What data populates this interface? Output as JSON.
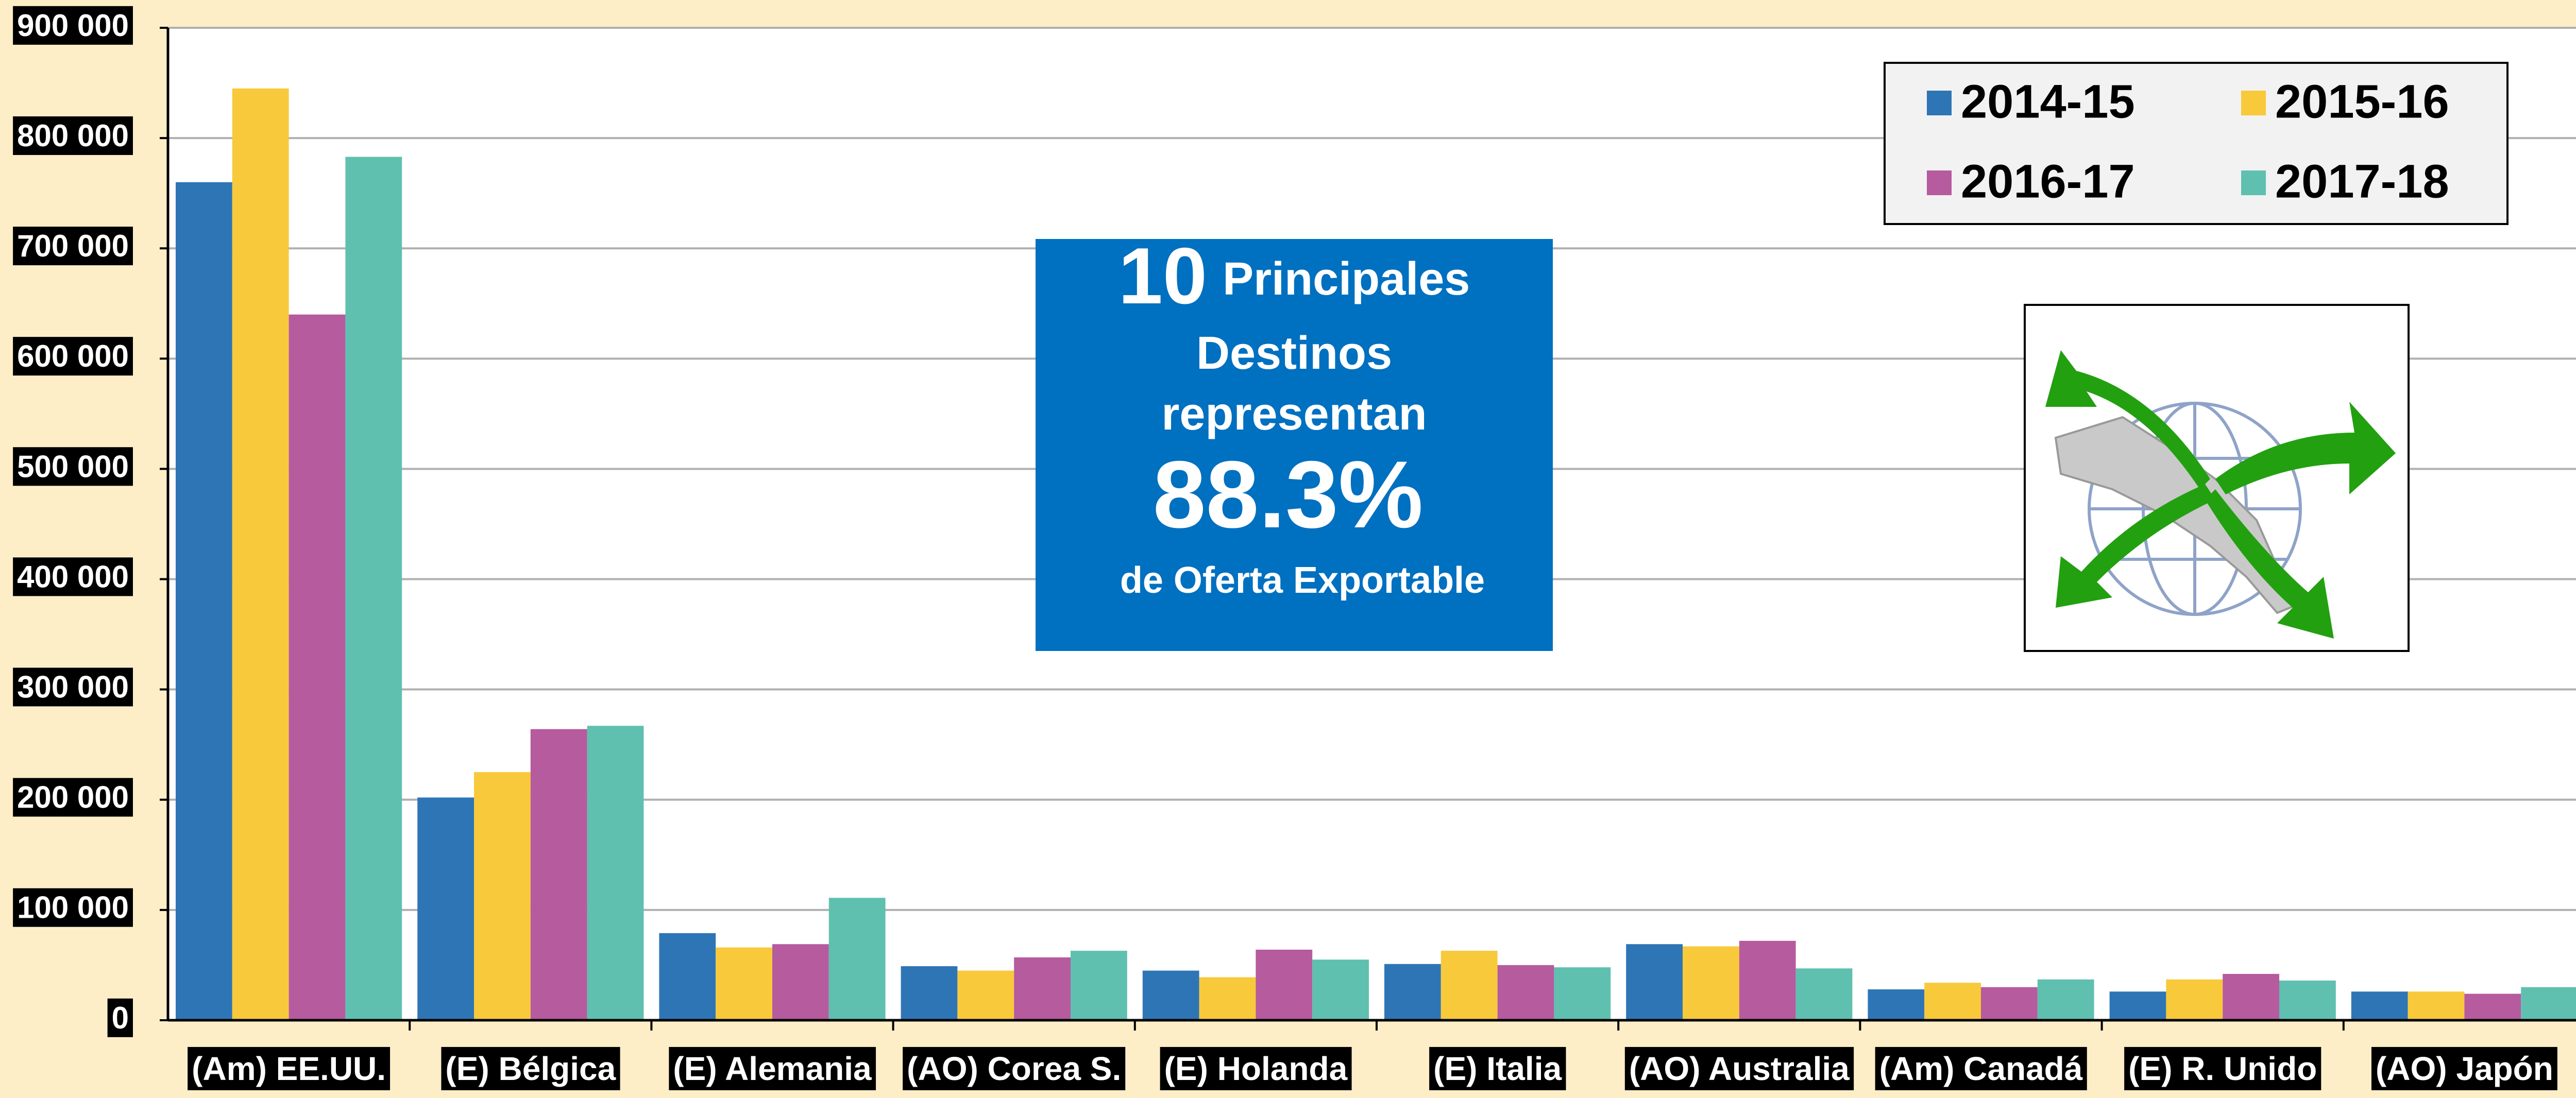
{
  "chart_data": {
    "type": "bar",
    "categories": [
      "(Am) EE.UU.",
      "(E) Bélgica",
      "(E) Alemania",
      "(AO) Corea S.",
      "(E) Holanda",
      "(E) Italia",
      "(AO) Australia",
      "(Am) Canadá",
      "(E) R. Unido",
      "(AO) Japón"
    ],
    "series": [
      {
        "name": "2014-15",
        "color": "#2e75b6",
        "values": [
          760000,
          202000,
          79000,
          49000,
          45000,
          51000,
          69000,
          28000,
          26000,
          26000
        ]
      },
      {
        "name": "2015-16",
        "color": "#f8c93a",
        "values": [
          845000,
          225000,
          66000,
          45000,
          39000,
          63000,
          67000,
          34000,
          37000,
          26000
        ]
      },
      {
        "name": "2016-17",
        "color": "#b65b9e",
        "values": [
          640000,
          264000,
          69000,
          57000,
          64000,
          50000,
          72000,
          30000,
          42000,
          24000
        ]
      },
      {
        "name": "2017-18",
        "color": "#5fc0b0",
        "values": [
          783000,
          267000,
          111000,
          63000,
          55000,
          48000,
          47000,
          37000,
          36000,
          30000
        ]
      }
    ],
    "ylim": [
      0,
      900000
    ],
    "yticks": [
      0,
      {
        "value": 100000,
        "label": "100 000"
      },
      {
        "value": 200000,
        "label": "200 000"
      },
      {
        "value": 300000,
        "label": "300 000"
      },
      {
        "value": 400000,
        "label": "400 000"
      },
      {
        "value": 500000,
        "label": "500 000"
      },
      {
        "value": 600000,
        "label": "600 000"
      },
      {
        "value": 700000,
        "label": "700 000"
      },
      {
        "value": 800000,
        "label": "800 000"
      },
      {
        "value": 900000,
        "label": "900 000"
      }
    ],
    "grid": true,
    "legend": "upper right",
    "annotation": {
      "number": "10",
      "lines": [
        "Principales",
        "Destinos",
        "representan"
      ],
      "percent": "88.3%",
      "footer": "de Oferta Exportable"
    }
  }
}
